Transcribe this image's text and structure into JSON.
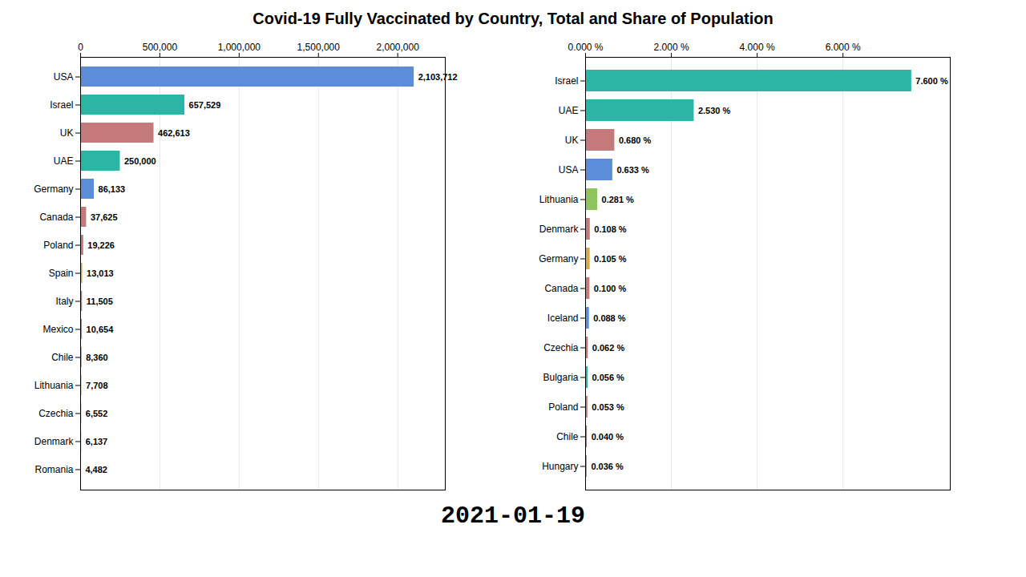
{
  "chart_data": [
    {
      "type": "bar",
      "title": "Covid-19 Fully Vaccinated by Country, Total and Share of Population",
      "annotations": [
        "2021-01-19"
      ],
      "orientation": "horizontal",
      "categories": [
        "USA",
        "Israel",
        "UK",
        "UAE",
        "Germany",
        "Canada",
        "Poland",
        "Spain",
        "Italy",
        "Mexico",
        "Chile",
        "Lithuania",
        "Czechia",
        "Denmark",
        "Romania"
      ],
      "values": [
        2103712,
        657529,
        462613,
        250000,
        86133,
        37625,
        19226,
        13013,
        11505,
        10654,
        8360,
        7708,
        6552,
        6137,
        4482
      ],
      "value_labels": [
        "2,103,712",
        "657,529",
        "462,613",
        "250,000",
        "86,133",
        "37,625",
        "19,226",
        "13,013",
        "11,505",
        "10,654",
        "8,360",
        "7,708",
        "6,552",
        "6,137",
        "4,482"
      ],
      "colors": [
        "#5b8dd9",
        "#2ab5a5",
        "#c47a7a",
        "#2ab5a5",
        "#5b8dd9",
        "#c47a7a",
        "#c47a7a",
        "#d4a84b",
        "#c47a7a",
        "#c47a7a",
        "#e06030",
        "#8dc45b",
        "#c47a7a",
        "#c47a7a",
        "#d4a84b"
      ],
      "xlim": [
        0,
        2300000
      ],
      "xticks": [
        0,
        {
          "value": 500000,
          "label": "500,000"
        },
        {
          "value": 1000000,
          "label": "1,000,000"
        },
        {
          "value": 1500000,
          "label": "1,500,000"
        },
        {
          "value": 2000000,
          "label": "2,000,000"
        }
      ],
      "grid": true,
      "data_labels": true
    },
    {
      "type": "bar",
      "orientation": "horizontal",
      "categories": [
        "Israel",
        "UAE",
        "UK",
        "USA",
        "Lithuania",
        "Denmark",
        "Germany",
        "Canada",
        "Iceland",
        "Czechia",
        "Bulgaria",
        "Poland",
        "Chile",
        "Hungary"
      ],
      "values": [
        7.6,
        2.53,
        0.68,
        0.633,
        0.281,
        0.108,
        0.105,
        0.1,
        0.088,
        0.062,
        0.056,
        0.053,
        0.04,
        0.036
      ],
      "value_labels": [
        "7.600 %",
        "2.530 %",
        "0.680 %",
        "0.633 %",
        "0.281 %",
        "0.108 %",
        "0.105 %",
        "0.100 %",
        "0.088 %",
        "0.062 %",
        "0.056 %",
        "0.053 %",
        "0.040 %",
        "0.036 %"
      ],
      "colors": [
        "#2ab5a5",
        "#2ab5a5",
        "#c47a7a",
        "#5b8dd9",
        "#8dc45b",
        "#c47a7a",
        "#d4a84b",
        "#c47a7a",
        "#5b8dd9",
        "#c47a7a",
        "#2ab5a5",
        "#c47a7a",
        "#e06030",
        "#c47a7a"
      ],
      "xlim": [
        0,
        8.5
      ],
      "xticks": [
        {
          "value": 0,
          "label": "0.000 %"
        },
        {
          "value": 2.0,
          "label": "2.000 %"
        },
        {
          "value": 4.0,
          "label": "4.000 %"
        },
        {
          "value": 6.0,
          "label": "6.000 %"
        }
      ],
      "grid": true,
      "data_labels": true
    }
  ]
}
